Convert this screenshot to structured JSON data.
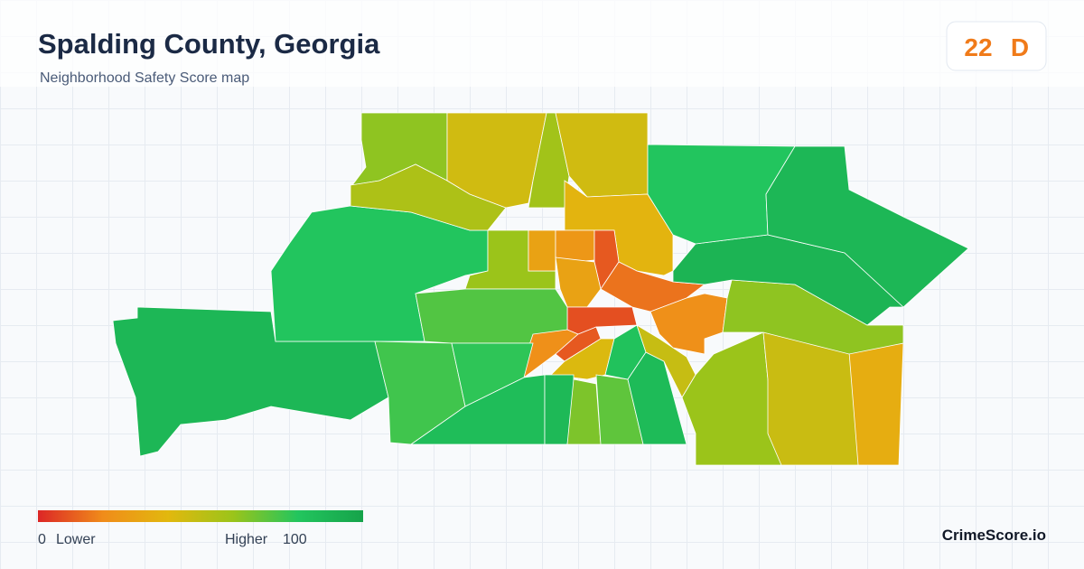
{
  "header": {
    "title": "Spalding County, Georgia",
    "subtitle": "Neighborhood Safety Score map"
  },
  "score": {
    "value": 22,
    "grade": "D",
    "color": "#f07b1a"
  },
  "map": {
    "region_scores": [
      88,
      80,
      62,
      55,
      45,
      58,
      45,
      38,
      60,
      30,
      25,
      10,
      30,
      8,
      15,
      72,
      22,
      10,
      42,
      75,
      78,
      85,
      87,
      65,
      70,
      82,
      86,
      48,
      22,
      60,
      47,
      35,
      62,
      90,
      80,
      88
    ]
  },
  "legend": {
    "min": 0,
    "max": 100,
    "low_label": "Lower",
    "high_label": "Higher",
    "colors": [
      "#dc2626",
      "#f08c1a",
      "#e2b80e",
      "#9bc41a",
      "#22c55e",
      "#16a34a"
    ]
  },
  "brand": "CrimeScore.io"
}
